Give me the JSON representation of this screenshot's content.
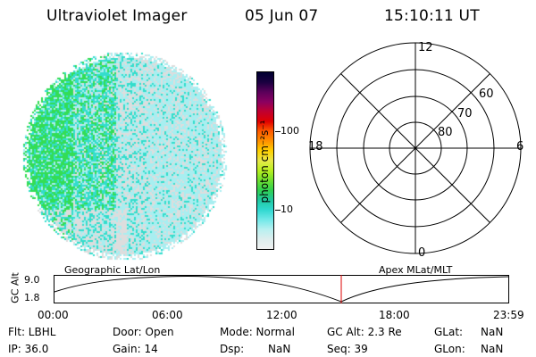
{
  "header": {
    "title": "Ultraviolet Imager",
    "date": "05 Jun 07",
    "time": "15:10:11 UT"
  },
  "colorbar": {
    "unit": "photon cm⁻²s⁻¹",
    "ticks": [
      "100",
      "10"
    ],
    "colors": [
      "#000030",
      "#1a0040",
      "#5a005a",
      "#8a0060",
      "#c00030",
      "#e00000",
      "#ff5a00",
      "#ff9000",
      "#ffd000",
      "#e8e84a",
      "#b8f020",
      "#70e030",
      "#30d050",
      "#20c8a0",
      "#30d8d0",
      "#70e8e8",
      "#b8f0f0",
      "#ddeeee",
      "#f0f0f0"
    ]
  },
  "disk": {
    "colors": {
      "green": "#33dd55",
      "cyan": "#33ddcc",
      "light": "#a8eef0",
      "pale": "#dddddd"
    }
  },
  "polar": {
    "top": "12",
    "bottom": "0",
    "left": "18",
    "right": "6",
    "lat_60": "60",
    "lat_70": "70",
    "lat_80": "80"
  },
  "timeline": {
    "geo_label": "Geographic Lat/Lon",
    "apex_label": "Apex MLat/MLT",
    "axis_label": "GC Alt",
    "max": "9.0",
    "min": "1.8",
    "cursor_color": "#dd0000",
    "ticks": [
      "00:00",
      "06:00",
      "12:00",
      "18:00",
      "23:59"
    ]
  },
  "status": {
    "flt": "Flt: LBHL",
    "ip": "IP: 36.0",
    "door": "Door: Open",
    "gain": "Gain: 14",
    "mode": "Mode: Normal",
    "dsp_label": "Dsp:",
    "dsp_value": "NaN",
    "gc_alt": "GC Alt: 2.3 Re",
    "seq": "Seq: 39",
    "glat_label": "GLat:",
    "glat_value": "NaN",
    "glon_label": "GLon:",
    "glon_value": "NaN"
  }
}
